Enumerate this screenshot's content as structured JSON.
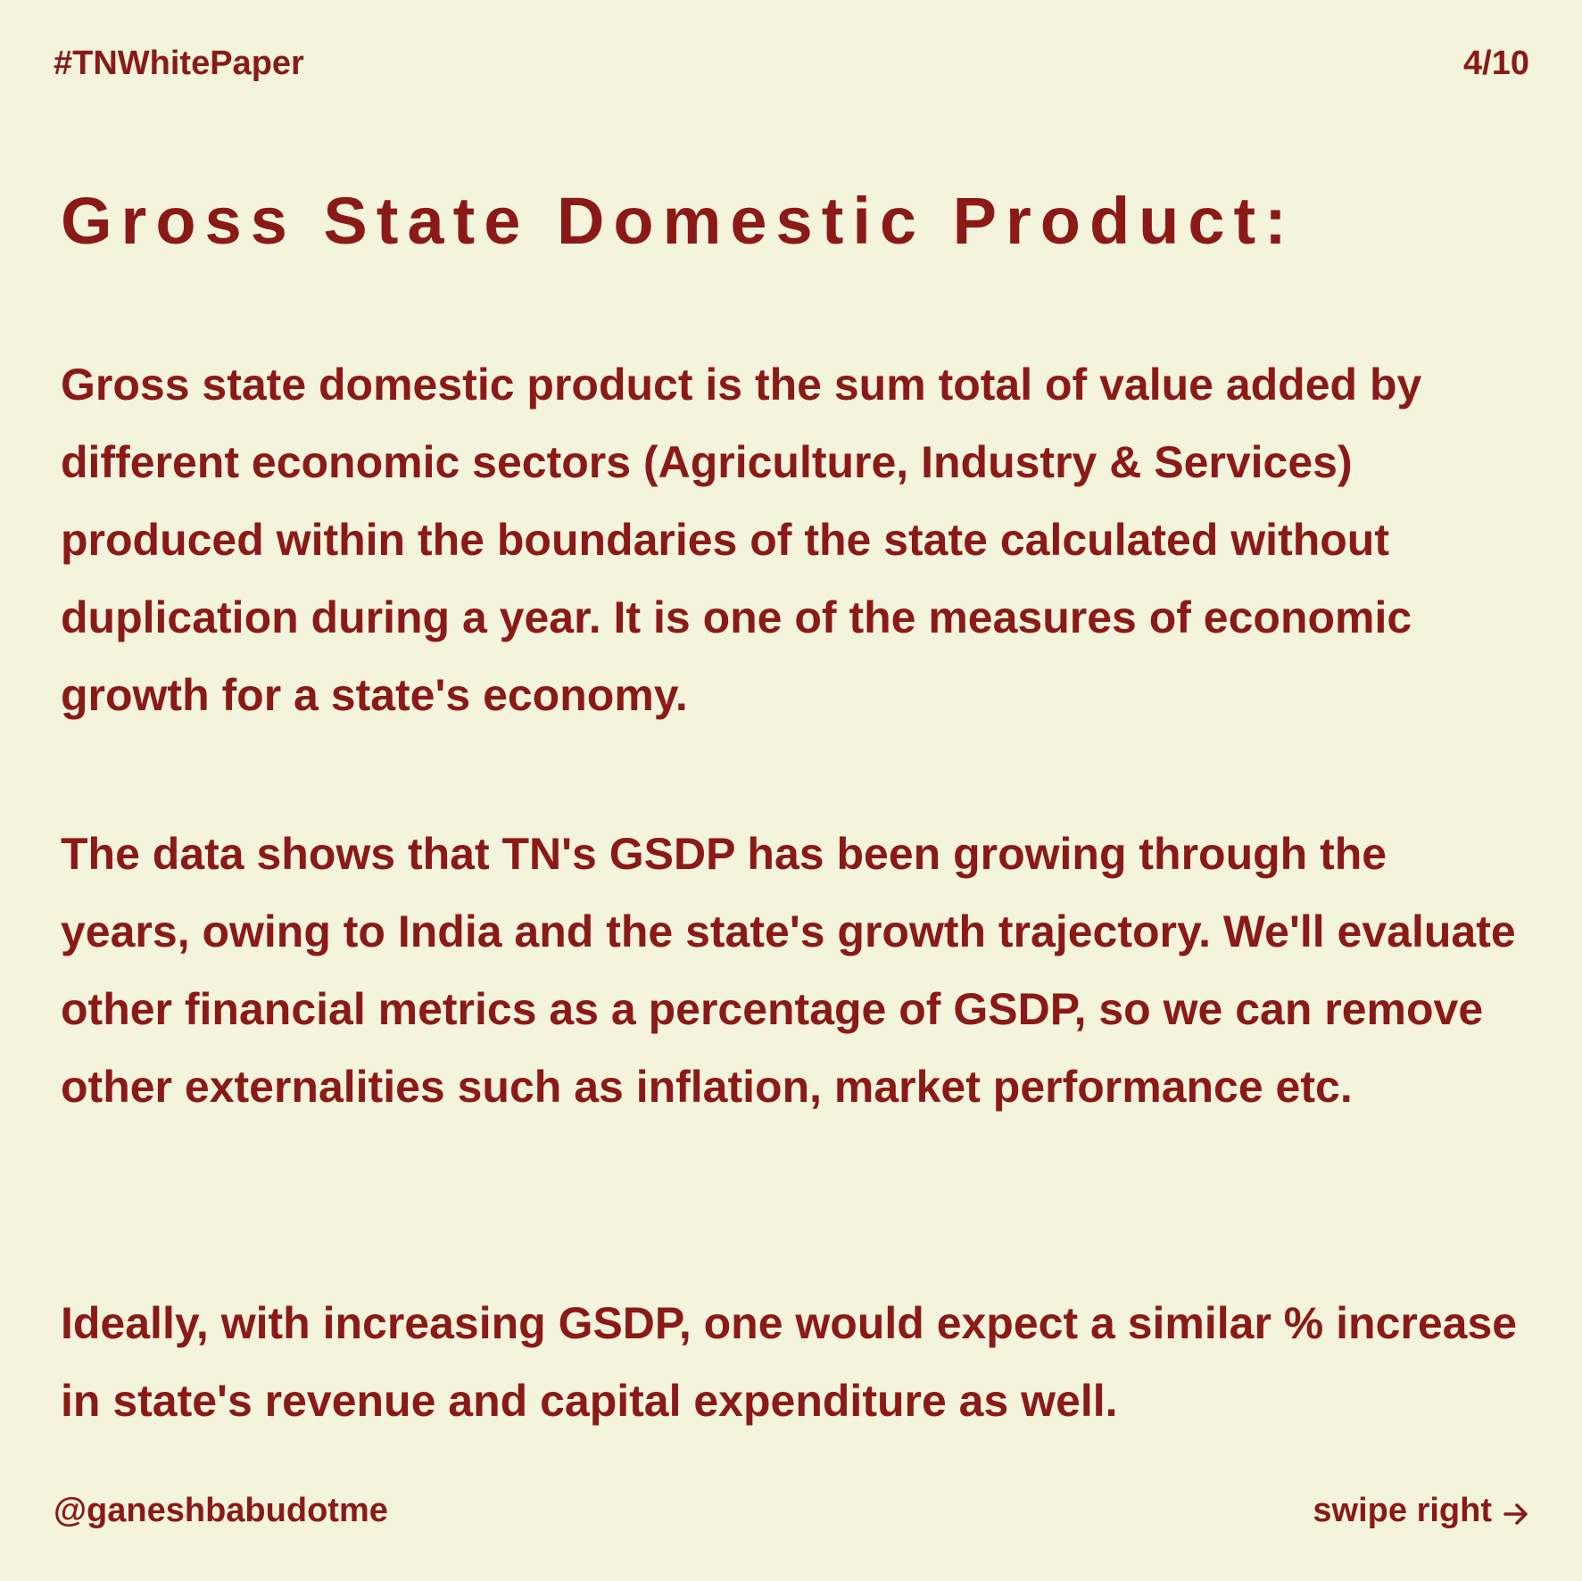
{
  "header": {
    "hashtag": "#TNWhitePaper",
    "page_indicator": "4/10"
  },
  "content": {
    "title": "Gross State Domestic Product:",
    "paragraphs": [
      "Gross state domestic product is the sum total of value added by different economic sectors (Agriculture, Industry & Services) produced within the boundaries of the state calculated without duplication during a year. It is one of the measures of economic growth for a state's economy.",
      "The data shows that TN's GSDP has been growing through the years, owing to India and the state's growth trajectory. We'll evaluate other financial metrics as a percentage of GSDP, so we can remove other externalities such as inflation, market performance etc.",
      "Ideally, with increasing GSDP, one would expect a similar % increase in state's revenue and capital expenditure as well."
    ]
  },
  "footer": {
    "handle": "@ganeshbabudotme",
    "swipe_label": "swipe right",
    "swipe_icon": "arrow-right-icon"
  },
  "colors": {
    "background": "#f4f4dd",
    "text": "#8b1a17"
  }
}
